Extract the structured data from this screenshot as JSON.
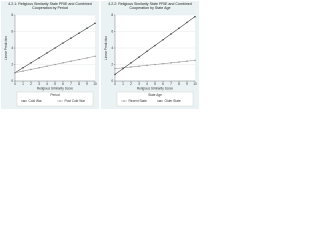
{
  "chart_data": [
    {
      "type": "line",
      "title": "4.2.1: Religious Similarity State PRIE and Combined Cooperation by Period",
      "x_label": "Religious Similarity Score",
      "y_label": "Linear Prediction",
      "x": [
        0,
        1,
        2,
        3,
        4,
        5,
        6,
        7,
        8,
        9,
        10
      ],
      "xlim": [
        0,
        10
      ],
      "xticks": [
        0,
        1,
        2,
        3,
        4,
        5,
        6,
        7,
        8,
        9,
        10
      ],
      "ylim": [
        0,
        8
      ],
      "yticks": [
        0,
        2,
        4,
        6,
        8
      ],
      "grid": true,
      "legend_title": "Period",
      "series": [
        {
          "name": "Cold War",
          "color": "#444444",
          "values": [
            1,
            1.6,
            2.2,
            2.8,
            3.4,
            4,
            4.6,
            5.2,
            5.8,
            6.4,
            7
          ]
        },
        {
          "name": "Post Cold War",
          "color": "#9a9a9a",
          "values": [
            1,
            1.2,
            1.4,
            1.6,
            1.8,
            2,
            2.2,
            2.4,
            2.6,
            2.8,
            3
          ]
        }
      ]
    },
    {
      "type": "line",
      "title": "4.2.2: Religious Similarity State PRIE and Combined Cooperation by State Age",
      "x_label": "Religious Similarity Score",
      "y_label": "Linear Prediction",
      "x": [
        0,
        1,
        2,
        3,
        4,
        5,
        6,
        7,
        8,
        9,
        10
      ],
      "xlim": [
        0,
        10
      ],
      "xticks": [
        0,
        1,
        2,
        3,
        4,
        5,
        6,
        7,
        8,
        9,
        10
      ],
      "ylim": [
        0,
        8
      ],
      "yticks": [
        0,
        2,
        4,
        6,
        8
      ],
      "grid": true,
      "legend_title": "State Age",
      "series": [
        {
          "name": "Recent State",
          "color": "#9a9a9a",
          "values": [
            1.5,
            1.6,
            1.7,
            1.8,
            1.9,
            2,
            2.1,
            2.2,
            2.3,
            2.4,
            2.5
          ]
        },
        {
          "name": "Older State",
          "color": "#444444",
          "values": [
            0.8,
            1.5,
            2.2,
            2.9,
            3.6,
            4.3,
            5,
            5.7,
            6.4,
            7.1,
            7.8
          ]
        }
      ]
    }
  ]
}
